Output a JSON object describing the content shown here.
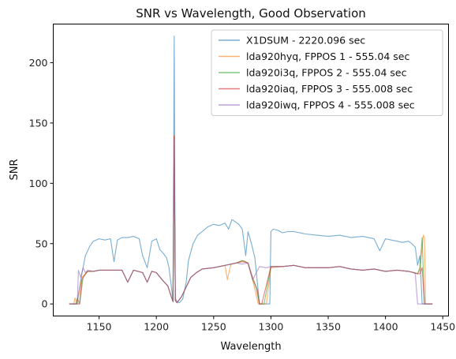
{
  "chart_data": {
    "type": "line",
    "title": "SNR vs Wavelength, Good Observation",
    "xlabel": "Wavelength",
    "ylabel": "SNR",
    "xlim": [
      1110,
      1455
    ],
    "ylim": [
      -10,
      232
    ],
    "xticks": [
      1150,
      1200,
      1250,
      1300,
      1350,
      1400,
      1450
    ],
    "yticks": [
      0,
      50,
      100,
      150,
      200
    ],
    "grid": false,
    "legend_position": "top-right",
    "series": [
      {
        "name": "X1DSUM - 2220.096 sec",
        "color": "#1f77b4",
        "x": [
          1124,
          1130,
          1132,
          1135,
          1138,
          1140,
          1142,
          1145,
          1150,
          1155,
          1160,
          1163,
          1166,
          1170,
          1175,
          1180,
          1185,
          1188,
          1192,
          1196,
          1200,
          1203,
          1206,
          1209,
          1211,
          1213,
          1214.5,
          1215.6,
          1216.5,
          1218,
          1220,
          1223,
          1226,
          1228,
          1232,
          1236,
          1240,
          1245,
          1250,
          1255,
          1260,
          1263,
          1266,
          1269,
          1272,
          1275,
          1278,
          1280,
          1283,
          1286,
          1290,
          1293,
          1296,
          1299,
          1300,
          1302,
          1306,
          1310,
          1315,
          1320,
          1330,
          1340,
          1350,
          1360,
          1370,
          1380,
          1390,
          1395,
          1400,
          1405,
          1410,
          1415,
          1420,
          1423,
          1426,
          1428,
          1430,
          1432,
          1434,
          1436,
          1438,
          1441
        ],
        "y": [
          0,
          0,
          8,
          25,
          40,
          44,
          48,
          52,
          54,
          53,
          54,
          35,
          53,
          55,
          55,
          56,
          54,
          40,
          30,
          52,
          54,
          45,
          42,
          38,
          30,
          15,
          2,
          222,
          5,
          2,
          1,
          4,
          18,
          36,
          50,
          57,
          60,
          64,
          66,
          65,
          67,
          62,
          70,
          68,
          66,
          62,
          40,
          60,
          50,
          38,
          0,
          0,
          0,
          0,
          60,
          62,
          61,
          59,
          60,
          60,
          58,
          57,
          56,
          57,
          55,
          56,
          54,
          44,
          54,
          53,
          52,
          51,
          52,
          50,
          47,
          32,
          40,
          0,
          0,
          0,
          0,
          0
        ]
      },
      {
        "name": "lda920hyq, FPPOS 1 - 555.04 sec",
        "color": "#ff7f0e",
        "x": [
          1124,
          1128,
          1129,
          1131,
          1135,
          1138,
          1140,
          1145,
          1150,
          1160,
          1170,
          1175,
          1180,
          1188,
          1192,
          1196,
          1200,
          1205,
          1210,
          1213,
          1214.5,
          1215.6,
          1216.5,
          1218,
          1222,
          1226,
          1230,
          1235,
          1240,
          1250,
          1255,
          1260,
          1262,
          1265,
          1270,
          1275,
          1278,
          1280,
          1284,
          1286,
          1289,
          1292,
          1296,
          1300,
          1310,
          1320,
          1330,
          1340,
          1350,
          1360,
          1370,
          1380,
          1390,
          1400,
          1410,
          1420,
          1425,
          1428,
          1430,
          1433,
          1434,
          1435,
          1438,
          1441
        ],
        "y": [
          0,
          0,
          5,
          0,
          22,
          25,
          27,
          27,
          28,
          28,
          28,
          18,
          28,
          26,
          18,
          27,
          26,
          20,
          15,
          6,
          2,
          140,
          3,
          1,
          6,
          14,
          22,
          26,
          29,
          30,
          31,
          32,
          20,
          33,
          34,
          36,
          35,
          33,
          20,
          12,
          0,
          0,
          0,
          30,
          31,
          32,
          30,
          30,
          30,
          31,
          29,
          28,
          29,
          27,
          28,
          27,
          26,
          25,
          28,
          57,
          55,
          0,
          0,
          0
        ]
      },
      {
        "name": "lda920i3q, FPPOS 2 - 555.04 sec",
        "color": "#2ca02c",
        "x": [
          1124,
          1130,
          1131,
          1133,
          1136,
          1140,
          1145,
          1150,
          1160,
          1170,
          1175,
          1180,
          1188,
          1192,
          1196,
          1200,
          1205,
          1210,
          1213,
          1214.5,
          1215.6,
          1216.5,
          1218,
          1222,
          1226,
          1230,
          1235,
          1240,
          1250,
          1260,
          1265,
          1270,
          1275,
          1280,
          1284,
          1287,
          1290,
          1292,
          1294,
          1300,
          1310,
          1320,
          1330,
          1340,
          1350,
          1360,
          1370,
          1380,
          1390,
          1400,
          1410,
          1420,
          1425,
          1428,
          1430,
          1432,
          1434,
          1438,
          1441
        ],
        "y": [
          0,
          0,
          5,
          0,
          22,
          27,
          27,
          28,
          28,
          28,
          18,
          28,
          26,
          18,
          27,
          26,
          20,
          15,
          6,
          2,
          138,
          3,
          1,
          6,
          14,
          22,
          26,
          29,
          30,
          32,
          33,
          34,
          36,
          34,
          20,
          14,
          0,
          0,
          0,
          31,
          31,
          32,
          30,
          30,
          30,
          31,
          29,
          28,
          29,
          27,
          28,
          27,
          26,
          25,
          30,
          55,
          0,
          0,
          0
        ]
      },
      {
        "name": "lda920iaq, FPPOS 3 - 555.008 sec",
        "color": "#d62728",
        "x": [
          1124,
          1133,
          1135,
          1138,
          1140,
          1145,
          1150,
          1160,
          1170,
          1175,
          1180,
          1188,
          1192,
          1196,
          1200,
          1205,
          1210,
          1213,
          1214.5,
          1215.6,
          1216.5,
          1218,
          1222,
          1226,
          1230,
          1235,
          1240,
          1250,
          1260,
          1265,
          1270,
          1275,
          1280,
          1284,
          1288,
          1290,
          1292,
          1300,
          1310,
          1320,
          1330,
          1340,
          1350,
          1360,
          1370,
          1380,
          1390,
          1400,
          1410,
          1420,
          1425,
          1428,
          1430,
          1432,
          1434,
          1438,
          1441
        ],
        "y": [
          0,
          0,
          20,
          25,
          27,
          27,
          28,
          28,
          28,
          18,
          28,
          26,
          18,
          27,
          26,
          20,
          15,
          6,
          2,
          139,
          3,
          1,
          6,
          14,
          22,
          26,
          29,
          30,
          32,
          33,
          34,
          35,
          34,
          22,
          12,
          0,
          0,
          31,
          31,
          32,
          30,
          30,
          30,
          31,
          29,
          28,
          29,
          27,
          28,
          27,
          26,
          25,
          25,
          30,
          0,
          0,
          0
        ]
      },
      {
        "name": "lda920iwq, FPPOS 4 - 555.008 sec",
        "color": "#9467bd",
        "x": [
          1124,
          1131,
          1132,
          1134,
          1136,
          1138,
          1140,
          1145,
          1150,
          1160,
          1170,
          1175,
          1180,
          1188,
          1192,
          1196,
          1200,
          1205,
          1210,
          1213,
          1214.5,
          1215.6,
          1216.5,
          1218,
          1222,
          1226,
          1230,
          1235,
          1240,
          1250,
          1260,
          1265,
          1270,
          1275,
          1280,
          1284,
          1290,
          1296,
          1300,
          1310,
          1320,
          1330,
          1340,
          1350,
          1360,
          1370,
          1380,
          1390,
          1400,
          1410,
          1420,
          1424,
          1426,
          1428,
          1441
        ],
        "y": [
          0,
          0,
          28,
          22,
          30,
          26,
          28,
          27,
          28,
          28,
          28,
          18,
          28,
          26,
          18,
          27,
          26,
          20,
          15,
          6,
          2,
          137,
          3,
          1,
          6,
          14,
          22,
          26,
          29,
          30,
          32,
          33,
          34,
          33,
          34,
          20,
          31,
          30,
          31,
          31,
          32,
          30,
          30,
          30,
          31,
          29,
          28,
          29,
          27,
          28,
          27,
          26,
          25,
          0,
          0
        ]
      }
    ]
  }
}
